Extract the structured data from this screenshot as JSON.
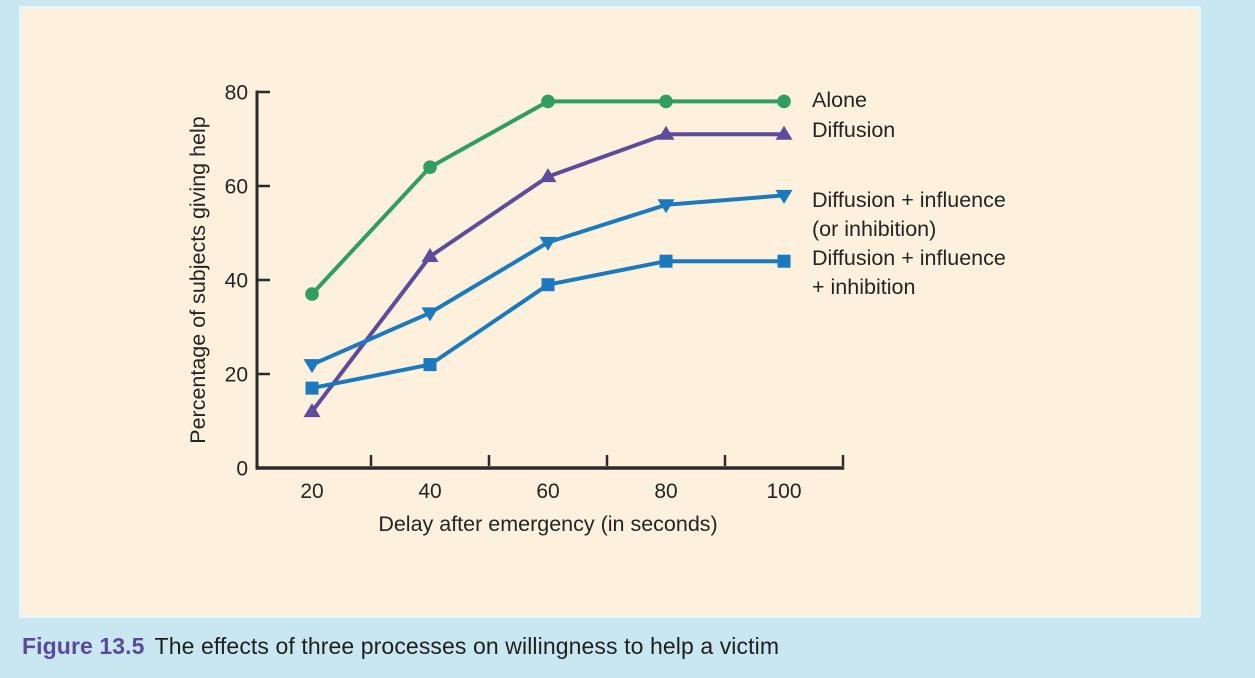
{
  "figure": {
    "caption_label": "Figure 13.5",
    "caption_text": "The effects of three processes on willingness to help a victim"
  },
  "colors": {
    "outer_background": "#c9e7f0",
    "panel_background": "#fdf0dd",
    "axis": "#2b2b2b",
    "text": "#242424",
    "caption_label": "#5b4a9b"
  },
  "chart_data": {
    "type": "line",
    "title": "",
    "xlabel": "Delay after emergency (in seconds)",
    "ylabel": "Percentage of subjects giving help",
    "x": [
      20,
      40,
      60,
      80,
      100
    ],
    "x_tick_labels": [
      "20",
      "40",
      "60",
      "80",
      "100"
    ],
    "y_tick_labels": [
      0,
      20,
      40,
      60,
      80
    ],
    "xlim": [
      10,
      110
    ],
    "ylim": [
      0,
      80
    ],
    "grid": false,
    "legend_position": "right-of-line-ends",
    "series": [
      {
        "name": "Alone",
        "marker": "circle",
        "color": "#2f9e5e",
        "values": [
          37,
          64,
          78,
          78,
          78
        ],
        "legend_lines": [
          "Alone"
        ]
      },
      {
        "name": "Diffusion",
        "marker": "triangle-up",
        "color": "#5e4b9c",
        "values": [
          12,
          45,
          62,
          71,
          71
        ],
        "legend_lines": [
          "Diffusion"
        ]
      },
      {
        "name": "Diffusion + influence (or inhibition)",
        "marker": "triangle-down",
        "color": "#1b79c0",
        "values": [
          22,
          33,
          48,
          56,
          58
        ],
        "legend_lines": [
          "Diffusion + influence",
          "(or inhibition)"
        ]
      },
      {
        "name": "Diffusion + influence + inhibition",
        "marker": "square",
        "color": "#1b79c0",
        "values": [
          17,
          22,
          39,
          44,
          44
        ],
        "legend_lines": [
          "Diffusion + influence",
          "+ inhibition"
        ]
      }
    ]
  }
}
